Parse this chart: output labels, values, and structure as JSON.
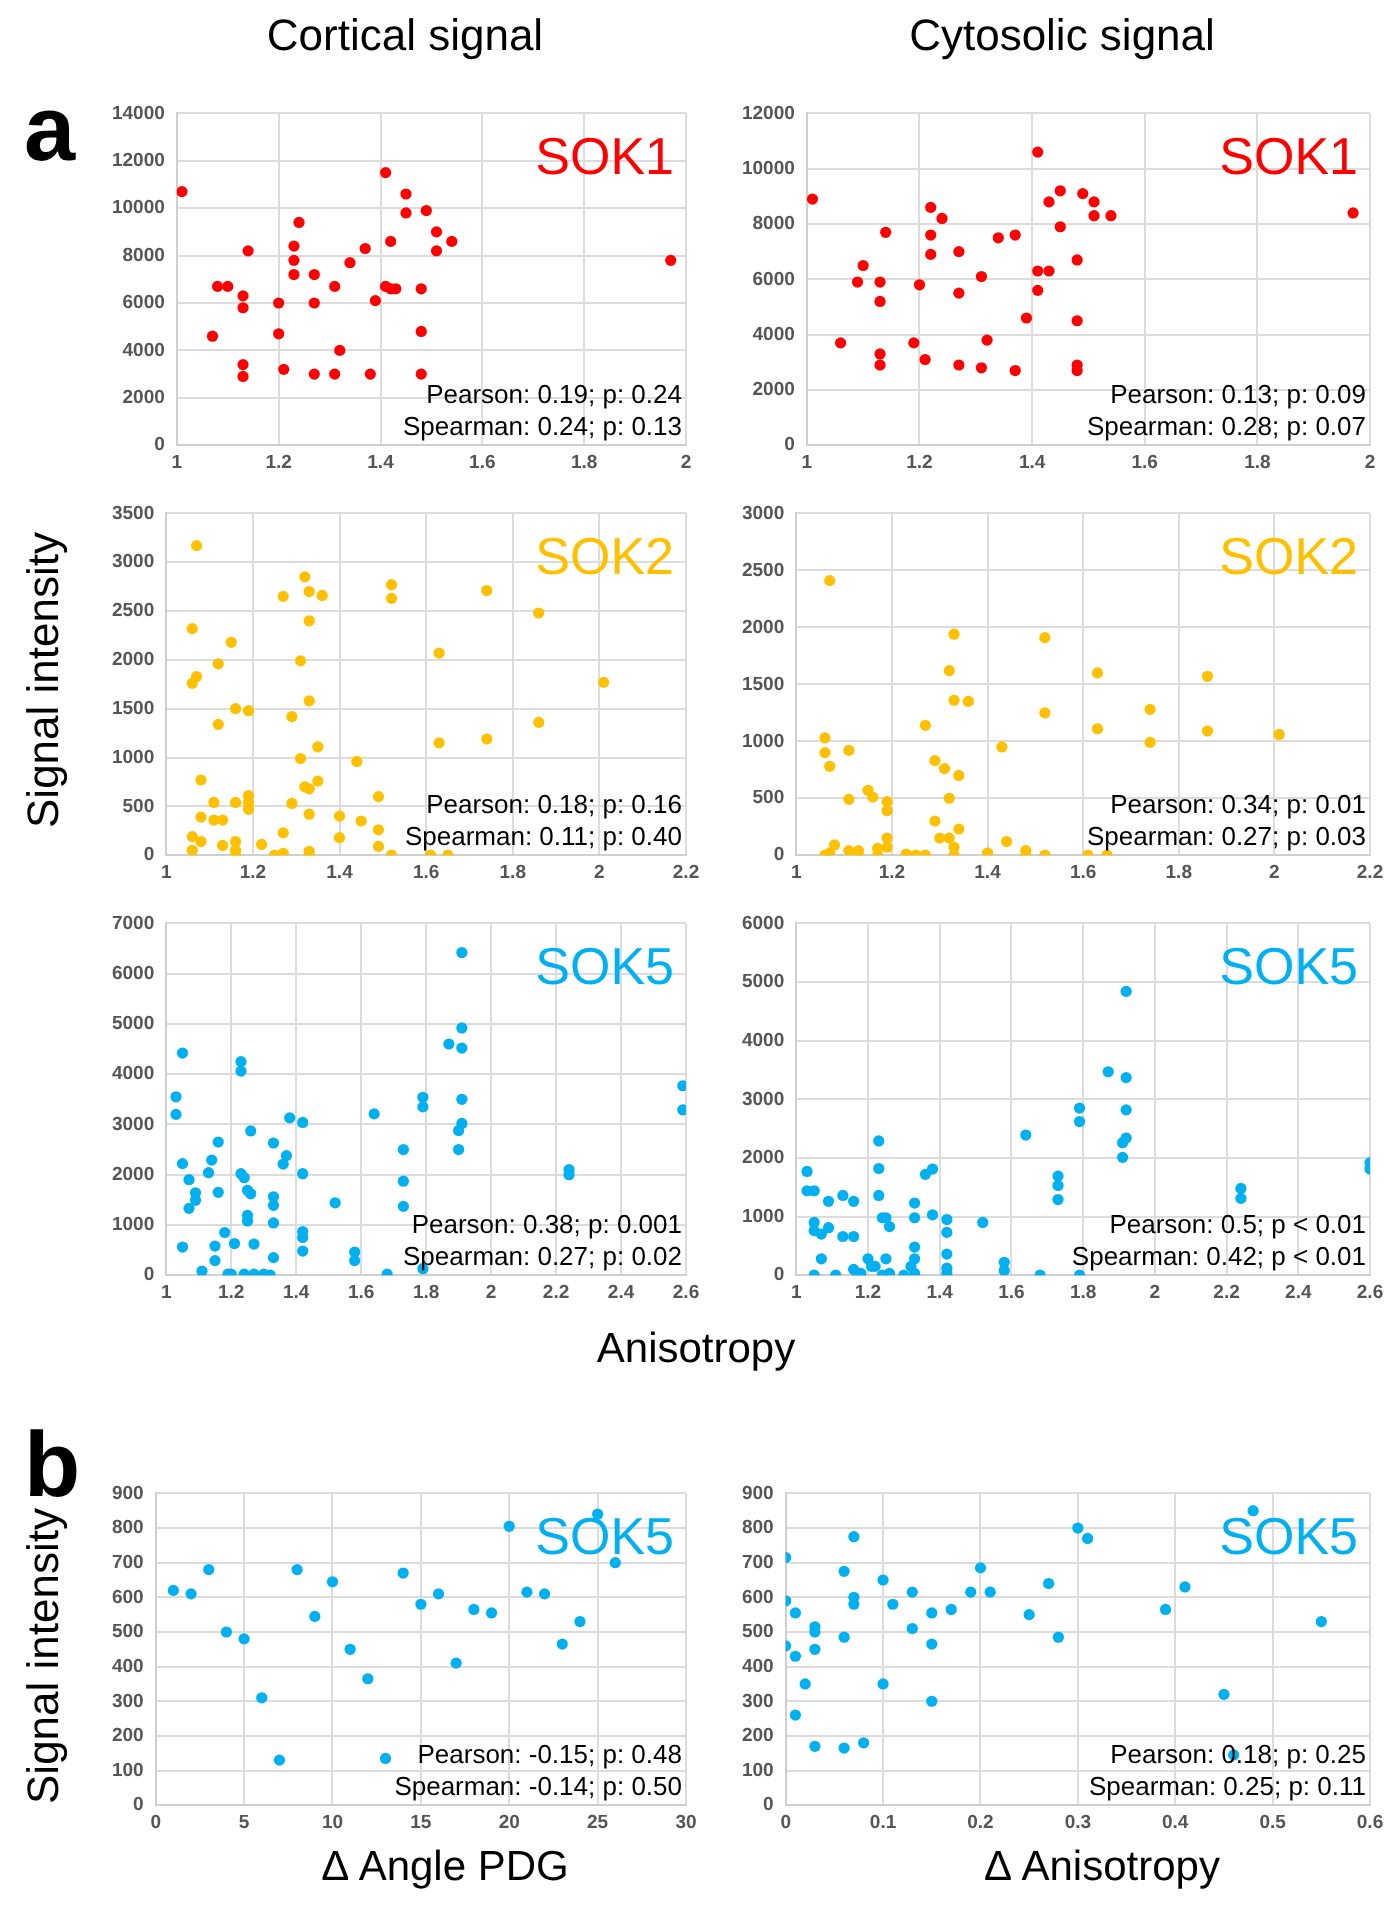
{
  "chart_data": [
    {
      "type": "scatter",
      "title": "Cortical signal",
      "annotations": [
        "a",
        "Pearson: 0.19; p: 0.24",
        "Spearman: 0.24; p: 0.13"
      ],
      "xlim": [
        1,
        2
      ],
      "xticks": [
        1,
        1.2,
        1.4,
        1.6,
        1.8,
        2
      ],
      "ylim": [
        0,
        14000
      ],
      "yticks": [
        0,
        2000,
        4000,
        6000,
        8000,
        10000,
        12000,
        14000
      ],
      "grid": true,
      "marker": "circle",
      "series": [
        {
          "name": "SOK1",
          "color": "#ff0000",
          "x": [
            1.01,
            1.07,
            1.08,
            1.1,
            1.13,
            1.13,
            1.13,
            1.13,
            1.14,
            1.2,
            1.2,
            1.21,
            1.23,
            1.23,
            1.23,
            1.24,
            1.27,
            1.27,
            1.27,
            1.31,
            1.32,
            1.31,
            1.34,
            1.37,
            1.39,
            1.38,
            1.41,
            1.41,
            1.42,
            1.43,
            1.42,
            1.45,
            1.45,
            1.48,
            1.48,
            1.48,
            1.49,
            1.51,
            1.51,
            1.54,
            1.97
          ],
          "values": [
            10700,
            4600,
            6700,
            6700,
            6300,
            5800,
            3400,
            2900,
            8200,
            4700,
            6000,
            3200,
            8400,
            7800,
            7200,
            9400,
            7200,
            6000,
            3000,
            6700,
            4000,
            3000,
            7700,
            8300,
            6100,
            3000,
            11500,
            6700,
            6600,
            6600,
            8600,
            10600,
            9800,
            6600,
            4800,
            3000,
            9900,
            9000,
            8200,
            8600,
            7800
          ]
        }
      ]
    },
    {
      "type": "scatter",
      "title": "Cytosolic signal",
      "annotations": [
        "Pearson: 0.13; p: 0.09",
        "Spearman: 0.28; p: 0.07"
      ],
      "xlim": [
        1,
        2
      ],
      "xticks": [
        1,
        1.2,
        1.4,
        1.6,
        1.8,
        2
      ],
      "ylim": [
        0,
        12000
      ],
      "yticks": [
        0,
        2000,
        4000,
        6000,
        8000,
        10000,
        12000
      ],
      "grid": true,
      "marker": "circle",
      "series": [
        {
          "name": "SOK1",
          "color": "#ff0000",
          "x": [
            1.01,
            1.06,
            1.09,
            1.1,
            1.13,
            1.13,
            1.13,
            1.13,
            1.14,
            1.19,
            1.2,
            1.21,
            1.22,
            1.22,
            1.22,
            1.24,
            1.27,
            1.27,
            1.27,
            1.31,
            1.31,
            1.32,
            1.34,
            1.37,
            1.37,
            1.39,
            1.41,
            1.41,
            1.41,
            1.43,
            1.43,
            1.45,
            1.45,
            1.48,
            1.48,
            1.48,
            1.48,
            1.49,
            1.51,
            1.51,
            1.54,
            1.97
          ],
          "values": [
            8900,
            3700,
            5900,
            6500,
            5900,
            5200,
            3300,
            2900,
            7700,
            3700,
            5800,
            3100,
            8600,
            7600,
            6900,
            8200,
            7000,
            5500,
            2900,
            6100,
            2800,
            3800,
            7500,
            7600,
            2700,
            4600,
            6300,
            10600,
            5600,
            6300,
            8800,
            7900,
            9200,
            6700,
            4500,
            2900,
            2700,
            9100,
            8800,
            8300,
            8300,
            8400
          ]
        }
      ]
    },
    {
      "type": "scatter",
      "ylabel": "Signal intensity",
      "annotations": [
        "Pearson: 0.18; p: 0.16",
        "Spearman: 0.11; p: 0.40"
      ],
      "xlim": [
        1,
        2.2
      ],
      "xticks": [
        1,
        1.2,
        1.4,
        1.6,
        1.8,
        2,
        2.2
      ],
      "ylim": [
        0,
        3500
      ],
      "yticks": [
        0,
        500,
        1000,
        1500,
        2000,
        2500,
        3000,
        3500
      ],
      "grid": true,
      "marker": "circle",
      "series": [
        {
          "name": "SOK2",
          "color": "#ffc000",
          "x": [
            1.07,
            1.06,
            1.07,
            1.06,
            1.08,
            1.06,
            1.06,
            1.08,
            1.08,
            1.11,
            1.11,
            1.13,
            1.13,
            1.12,
            1.12,
            1.15,
            1.16,
            1.16,
            1.16,
            1.16,
            1.16,
            1.19,
            1.19,
            1.19,
            1.19,
            1.22,
            1.25,
            1.27,
            1.27,
            1.27,
            1.29,
            1.29,
            1.31,
            1.31,
            1.32,
            1.33,
            1.33,
            1.33,
            1.32,
            1.33,
            1.33,
            1.33,
            1.33,
            1.35,
            1.35,
            1.36,
            1.4,
            1.4,
            1.44,
            1.45,
            1.49,
            1.49,
            1.49,
            1.52,
            1.52,
            1.52,
            1.63,
            1.63,
            1.61,
            1.65,
            1.74,
            1.74,
            1.86,
            1.86,
            2.01
          ],
          "values": [
            3170,
            2320,
            1830,
            1760,
            770,
            190,
            50,
            390,
            140,
            540,
            360,
            360,
            100,
            1340,
            1960,
            2180,
            1500,
            540,
            140,
            50,
            0,
            1480,
            610,
            540,
            470,
            110,
            0,
            20,
            230,
            2650,
            1420,
            530,
            1990,
            990,
            2850,
            2700,
            2400,
            1580,
            700,
            680,
            420,
            40,
            0,
            1110,
            760,
            2660,
            400,
            180,
            960,
            350,
            600,
            260,
            90,
            2770,
            2630,
            0,
            2070,
            1150,
            0,
            0,
            2710,
            1190,
            2480,
            1360,
            1770
          ]
        }
      ]
    },
    {
      "type": "scatter",
      "annotations": [
        "Pearson: 0.34; p: 0.01",
        "Spearman: 0.27; p: 0.03"
      ],
      "xlim": [
        1,
        2.2
      ],
      "xticks": [
        1,
        1.2,
        1.4,
        1.6,
        1.8,
        2,
        2.2
      ],
      "ylim": [
        0,
        3000
      ],
      "yticks": [
        0,
        500,
        1000,
        1500,
        2000,
        2500,
        3000
      ],
      "grid": true,
      "marker": "circle",
      "series": [
        {
          "name": "SOK2",
          "color": "#ffc000",
          "x": [
            1.07,
            1.06,
            1.06,
            1.07,
            1.06,
            1.07,
            1.08,
            1.11,
            1.11,
            1.11,
            1.13,
            1.13,
            1.15,
            1.16,
            1.17,
            1.17,
            1.19,
            1.19,
            1.19,
            1.19,
            1.23,
            1.25,
            1.27,
            1.27,
            1.29,
            1.31,
            1.32,
            1.29,
            1.3,
            1.32,
            1.32,
            1.33,
            1.33,
            1.36,
            1.34,
            1.34,
            1.33,
            1.33,
            1.4,
            1.43,
            1.44,
            1.48,
            1.48,
            1.52,
            1.52,
            1.52,
            1.61,
            1.63,
            1.63,
            1.65,
            1.74,
            1.74,
            1.86,
            1.86,
            2.01
          ],
          "values": [
            2410,
            1030,
            900,
            780,
            0,
            20,
            90,
            920,
            490,
            40,
            40,
            0,
            570,
            510,
            60,
            0,
            470,
            390,
            150,
            70,
            10,
            0,
            0,
            1140,
            830,
            760,
            500,
            300,
            150,
            150,
            1620,
            1940,
            1360,
            1350,
            700,
            230,
            70,
            0,
            20,
            950,
            120,
            40,
            0,
            1910,
            1250,
            0,
            0,
            1600,
            1110,
            0,
            1280,
            990,
            1570,
            1090,
            1060
          ]
        }
      ]
    },
    {
      "type": "scatter",
      "xlabel": "Anisotropy",
      "annotations": [
        "Pearson: 0.38; p: 0.001",
        "Spearman: 0.27; p: 0.02"
      ],
      "xlim": [
        1,
        2.6
      ],
      "xticks": [
        1,
        1.2,
        1.4,
        1.6,
        1.8,
        2,
        2.2,
        2.4,
        2.6
      ],
      "ylim": [
        0,
        7000
      ],
      "yticks": [
        0,
        1000,
        2000,
        3000,
        4000,
        5000,
        6000,
        7000
      ],
      "grid": true,
      "marker": "circle",
      "series": [
        {
          "name": "SOK5",
          "color": "#00b0f0",
          "x": [
            1.03,
            1.03,
            1.05,
            1.05,
            1.05,
            1.07,
            1.07,
            1.09,
            1.09,
            1.11,
            1.13,
            1.14,
            1.16,
            1.16,
            1.15,
            1.15,
            1.18,
            1.19,
            1.2,
            1.21,
            1.23,
            1.23,
            1.23,
            1.24,
            1.25,
            1.25,
            1.25,
            1.26,
            1.26,
            1.27,
            1.24,
            1.27,
            1.3,
            1.32,
            1.33,
            1.33,
            1.33,
            1.33,
            1.33,
            1.36,
            1.37,
            1.38,
            1.42,
            1.42,
            1.42,
            1.42,
            1.42,
            1.52,
            1.58,
            1.58,
            1.64,
            1.68,
            1.73,
            1.73,
            1.73,
            1.79,
            1.79,
            1.79,
            1.87,
            1.91,
            1.91,
            1.91,
            1.91,
            1.91,
            1.9,
            1.9,
            2.24,
            2.24,
            2.59,
            2.59
          ],
          "values": [
            3550,
            3200,
            4420,
            2220,
            560,
            1900,
            1330,
            1640,
            1490,
            80,
            2040,
            2290,
            2650,
            1650,
            580,
            290,
            850,
            20,
            20,
            630,
            4250,
            4060,
            2020,
            1940,
            1690,
            1190,
            1080,
            1620,
            2870,
            620,
            20,
            20,
            20,
            0,
            2630,
            1560,
            1390,
            1040,
            350,
            2210,
            2380,
            3130,
            3040,
            2020,
            870,
            750,
            480,
            1440,
            460,
            290,
            3210,
            20,
            2500,
            1870,
            1370,
            3540,
            3350,
            130,
            4600,
            6420,
            4920,
            4520,
            3500,
            3020,
            2880,
            2500,
            2000,
            2100,
            3770,
            3290
          ]
        }
      ]
    },
    {
      "type": "scatter",
      "annotations": [
        "Pearson: 0.5; p < 0.01",
        "Spearman: 0.42; p < 0.01"
      ],
      "xlim": [
        1,
        2.6
      ],
      "xticks": [
        1,
        1.2,
        1.4,
        1.6,
        1.8,
        2,
        2.2,
        2.4,
        2.6
      ],
      "ylim": [
        0,
        6000
      ],
      "yticks": [
        0,
        1000,
        2000,
        3000,
        4000,
        5000,
        6000
      ],
      "grid": true,
      "marker": "circle",
      "series": [
        {
          "name": "SOK5",
          "color": "#00b0f0",
          "x": [
            1.03,
            1.03,
            1.05,
            1.05,
            1.05,
            1.07,
            1.07,
            1.05,
            1.09,
            1.09,
            1.11,
            1.13,
            1.13,
            1.16,
            1.16,
            1.16,
            1.17,
            1.18,
            1.2,
            1.21,
            1.23,
            1.23,
            1.23,
            1.22,
            1.24,
            1.25,
            1.26,
            1.26,
            1.24,
            1.25,
            1.3,
            1.32,
            1.33,
            1.33,
            1.33,
            1.33,
            1.33,
            1.36,
            1.38,
            1.38,
            1.42,
            1.42,
            1.42,
            1.42,
            1.42,
            1.52,
            1.58,
            1.58,
            1.64,
            1.68,
            1.73,
            1.73,
            1.73,
            1.79,
            1.79,
            1.79,
            1.87,
            1.92,
            1.92,
            1.92,
            1.92,
            1.91,
            1.91,
            2.24,
            2.24,
            2.6,
            2.6
          ],
          "values": [
            1770,
            1440,
            1440,
            900,
            760,
            700,
            280,
            0,
            810,
            1260,
            0,
            1360,
            660,
            1260,
            660,
            100,
            30,
            30,
            280,
            150,
            2290,
            1820,
            1360,
            150,
            980,
            980,
            830,
            30,
            0,
            280,
            0,
            150,
            1230,
            980,
            480,
            280,
            30,
            1720,
            1810,
            1030,
            950,
            730,
            360,
            120,
            30,
            900,
            220,
            80,
            2390,
            0,
            1690,
            1530,
            1290,
            2850,
            2620,
            0,
            3470,
            4840,
            3370,
            2820,
            2340,
            2260,
            2010,
            1480,
            1310,
            1920,
            1810
          ]
        }
      ]
    },
    {
      "type": "scatter",
      "ylabel": "Signal intensity",
      "xlabel": "Δ Angle PDG",
      "annotations": [
        "b",
        "Pearson: -0.15; p: 0.48",
        "Spearman: -0.14; p: 0.50"
      ],
      "xlim": [
        0,
        30
      ],
      "xticks": [
        0,
        5,
        10,
        15,
        20,
        25,
        30
      ],
      "ylim": [
        0,
        900
      ],
      "yticks": [
        0,
        100,
        200,
        300,
        400,
        500,
        600,
        700,
        800,
        900
      ],
      "grid": true,
      "marker": "circle",
      "series": [
        {
          "name": "SOK5",
          "color": "#00b0f0",
          "x": [
            1,
            2,
            3,
            4,
            5,
            6,
            7,
            8,
            9,
            10,
            11,
            12,
            13,
            14,
            15,
            16,
            17,
            18,
            19,
            20,
            21,
            22,
            23,
            24,
            26,
            25
          ],
          "values": [
            620,
            610,
            680,
            500,
            480,
            310,
            130,
            680,
            545,
            645,
            450,
            365,
            135,
            670,
            580,
            610,
            410,
            565,
            555,
            805,
            615,
            610,
            465,
            530,
            700,
            840
          ]
        }
      ]
    },
    {
      "type": "scatter",
      "xlabel": "Δ Anisotropy",
      "annotations": [
        "Pearson: 0.18; p: 0.25",
        "Spearman: 0.25; p: 0.11"
      ],
      "xlim": [
        0,
        0.6
      ],
      "xticks": [
        0,
        0.1,
        0.2,
        0.3,
        0.4,
        0.5,
        0.6
      ],
      "ylim": [
        0,
        900
      ],
      "yticks": [
        0,
        100,
        200,
        300,
        400,
        500,
        600,
        700,
        800,
        900
      ],
      "grid": true,
      "marker": "circle",
      "series": [
        {
          "name": "SOK5",
          "color": "#00b0f0",
          "x": [
            0,
            0,
            0,
            0.01,
            0.01,
            0.01,
            0.02,
            0.03,
            0.03,
            0.03,
            0.03,
            0.06,
            0.06,
            0.06,
            0.07,
            0.07,
            0.07,
            0.08,
            0.1,
            0.1,
            0.11,
            0.13,
            0.13,
            0.15,
            0.15,
            0.15,
            0.17,
            0.19,
            0.2,
            0.21,
            0.25,
            0.27,
            0.28,
            0.3,
            0.31,
            0.39,
            0.41,
            0.45,
            0.46,
            0.48,
            0.55
          ],
          "values": [
            715,
            590,
            460,
            555,
            430,
            260,
            350,
            515,
            500,
            450,
            170,
            675,
            485,
            165,
            775,
            600,
            580,
            180,
            650,
            350,
            580,
            615,
            510,
            555,
            465,
            300,
            565,
            615,
            685,
            615,
            550,
            640,
            485,
            800,
            770,
            565,
            630,
            320,
            145,
            850,
            530
          ]
        }
      ]
    }
  ]
}
